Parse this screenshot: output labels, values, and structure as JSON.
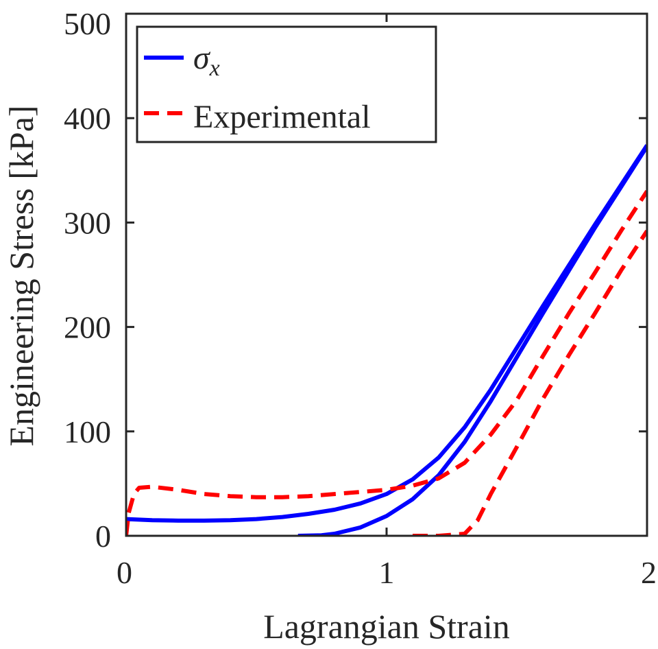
{
  "chart_data": {
    "type": "line",
    "title": "",
    "xlabel": "Lagrangian Strain",
    "ylabel": "Engineering Stress [kPa]",
    "xlim": [
      0,
      2
    ],
    "ylim": [
      0,
      500
    ],
    "xticks": [
      0,
      1,
      2
    ],
    "xtick_labels": [
      "0",
      "1",
      "2"
    ],
    "yticks": [
      0,
      100,
      200,
      300,
      400,
      500
    ],
    "ytick_labels": [
      "0",
      "100",
      "200",
      "300",
      "400",
      "500"
    ],
    "grid": false,
    "legend_position": "top-left",
    "legend_entries": [
      {
        "key": "sigma_x",
        "symbol": "σ",
        "subscript": "x",
        "color": "#0000ff",
        "style": "solid"
      },
      {
        "key": "experimental",
        "label": "Experimental",
        "color": "#ff0000",
        "style": "dashed"
      }
    ],
    "series": [
      {
        "name": "σx loading",
        "legend": "sigma_x",
        "color": "#0000ff",
        "style": "solid",
        "x": [
          0,
          0.1,
          0.2,
          0.3,
          0.4,
          0.5,
          0.6,
          0.7,
          0.8,
          0.9,
          1.0,
          1.1,
          1.2,
          1.3,
          1.4,
          1.5,
          1.6,
          1.7,
          1.8,
          1.9,
          2.0
        ],
        "y": [
          16,
          15,
          14.5,
          14.5,
          15,
          16,
          18,
          21,
          25,
          31,
          40,
          54,
          75,
          104,
          140,
          180,
          220,
          259,
          298,
          336,
          374
        ]
      },
      {
        "name": "σx unloading",
        "legend": "sigma_x",
        "color": "#0000ff",
        "style": "solid",
        "x": [
          0.66,
          0.75,
          0.8,
          0.9,
          1.0,
          1.1,
          1.2,
          1.3,
          1.4,
          1.5,
          1.6,
          1.7,
          1.8,
          1.9,
          2.0
        ],
        "y": [
          0,
          0.5,
          2,
          8,
          19,
          35,
          58,
          90,
          129,
          171,
          213,
          254,
          295,
          334,
          373
        ]
      },
      {
        "name": "Experimental loading",
        "legend": "experimental",
        "color": "#ff0000",
        "style": "dashed",
        "x": [
          0,
          0.01,
          0.03,
          0.05,
          0.1,
          0.2,
          0.3,
          0.4,
          0.5,
          0.6,
          0.7,
          0.8,
          0.9,
          1.0,
          1.1,
          1.2,
          1.3,
          1.4,
          1.5,
          1.6,
          1.7,
          1.8,
          1.9,
          2.0
        ],
        "y": [
          0,
          22,
          40,
          46,
          47,
          44,
          40,
          38,
          37,
          37,
          38,
          40,
          42,
          44,
          48,
          55,
          70,
          97,
          130,
          172,
          213,
          252,
          292,
          330
        ]
      },
      {
        "name": "Experimental unloading",
        "legend": "experimental",
        "color": "#ff0000",
        "style": "dashed",
        "x": [
          1.1,
          1.2,
          1.3,
          1.35,
          1.4,
          1.5,
          1.6,
          1.7,
          1.8,
          1.9,
          2.0
        ],
        "y": [
          0,
          0,
          2,
          15,
          40,
          85,
          131,
          173,
          213,
          254,
          292
        ]
      }
    ]
  }
}
